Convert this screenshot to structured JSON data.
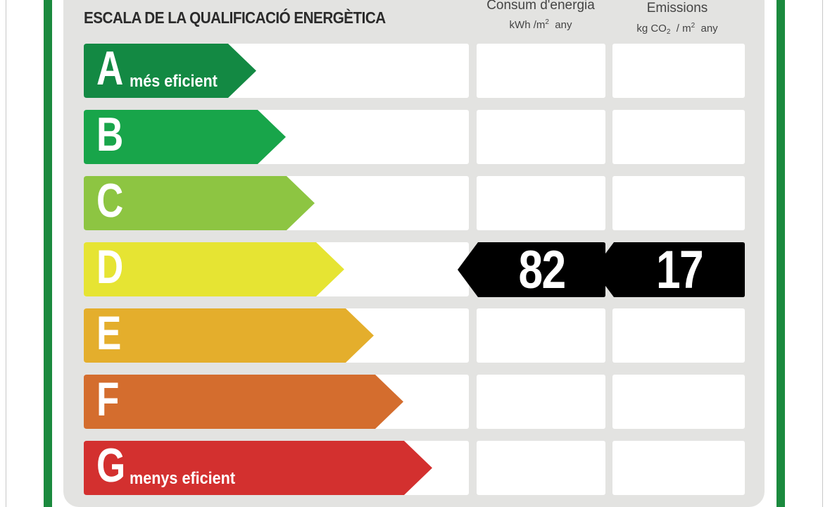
{
  "title": "ESCALA DE LA QUALIFICACIÓ ENERGÈTICA",
  "columns": {
    "energy": {
      "label": "Consum d'energia",
      "unit_prefix": "kWh /m",
      "unit_sup": "2",
      "unit_suffix": "any"
    },
    "emissions": {
      "label": "Emissions",
      "unit_prefix": "kg CO",
      "unit_sub": "2",
      "unit_mid": "/ m",
      "unit_sup": "2",
      "unit_suffix": "any"
    }
  },
  "ratings": [
    {
      "letter": "A",
      "sublabel": "més eficient",
      "color": "#138943"
    },
    {
      "letter": "B",
      "sublabel": "",
      "color": "#18a54a"
    },
    {
      "letter": "C",
      "sublabel": "",
      "color": "#8dc542"
    },
    {
      "letter": "D",
      "sublabel": "",
      "color": "#e6e433"
    },
    {
      "letter": "E",
      "sublabel": "",
      "color": "#e4ae2c"
    },
    {
      "letter": "F",
      "sublabel": "",
      "color": "#d46d2e"
    },
    {
      "letter": "G",
      "sublabel": "menys eficient",
      "color": "#d3302f"
    }
  ],
  "current": {
    "rating": "D",
    "energy_value": "82",
    "emissions_value": "17",
    "indicator_color": "#000000"
  },
  "colors": {
    "frame": "#1b8a3e",
    "panel": "#e3e3e1"
  }
}
